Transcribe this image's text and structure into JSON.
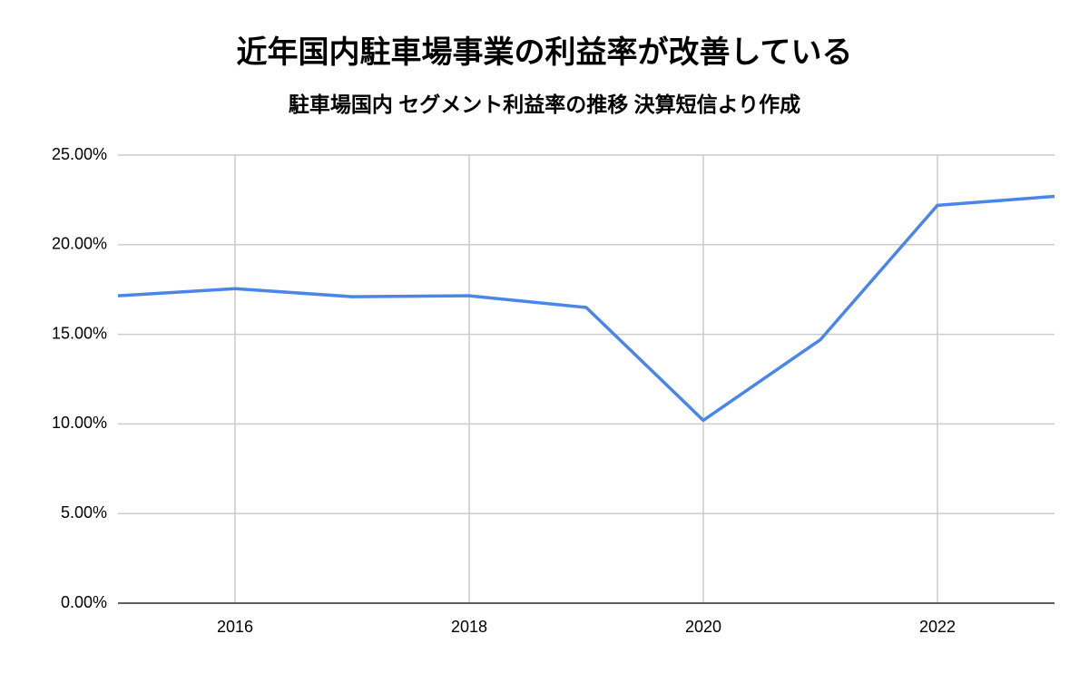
{
  "chart_data": {
    "type": "line",
    "title": "近年国内駐車場事業の利益率が改善している",
    "subtitle": "駐車場国内 セグメント利益率の推移 決算短信より作成",
    "x": [
      2015,
      2016,
      2017,
      2018,
      2019,
      2020,
      2021,
      2022,
      2023
    ],
    "series": [
      {
        "color": "#4a86e8",
        "values": [
          17.15,
          17.55,
          17.1,
          17.15,
          16.5,
          10.2,
          14.7,
          22.2,
          22.7
        ]
      }
    ],
    "xlim": [
      2015,
      2023
    ],
    "xticks": [
      2016,
      2018,
      2020,
      2022
    ],
    "ylim": [
      0,
      25
    ],
    "yticks": [
      {
        "value": 0,
        "label": "0.00%"
      },
      {
        "value": 5,
        "label": "5.00%"
      },
      {
        "value": 10,
        "label": "10.00%"
      },
      {
        "value": 15,
        "label": "15.00%"
      },
      {
        "value": 20,
        "label": "20.00%"
      },
      {
        "value": 25,
        "label": "25.00%"
      }
    ],
    "grid": true
  }
}
